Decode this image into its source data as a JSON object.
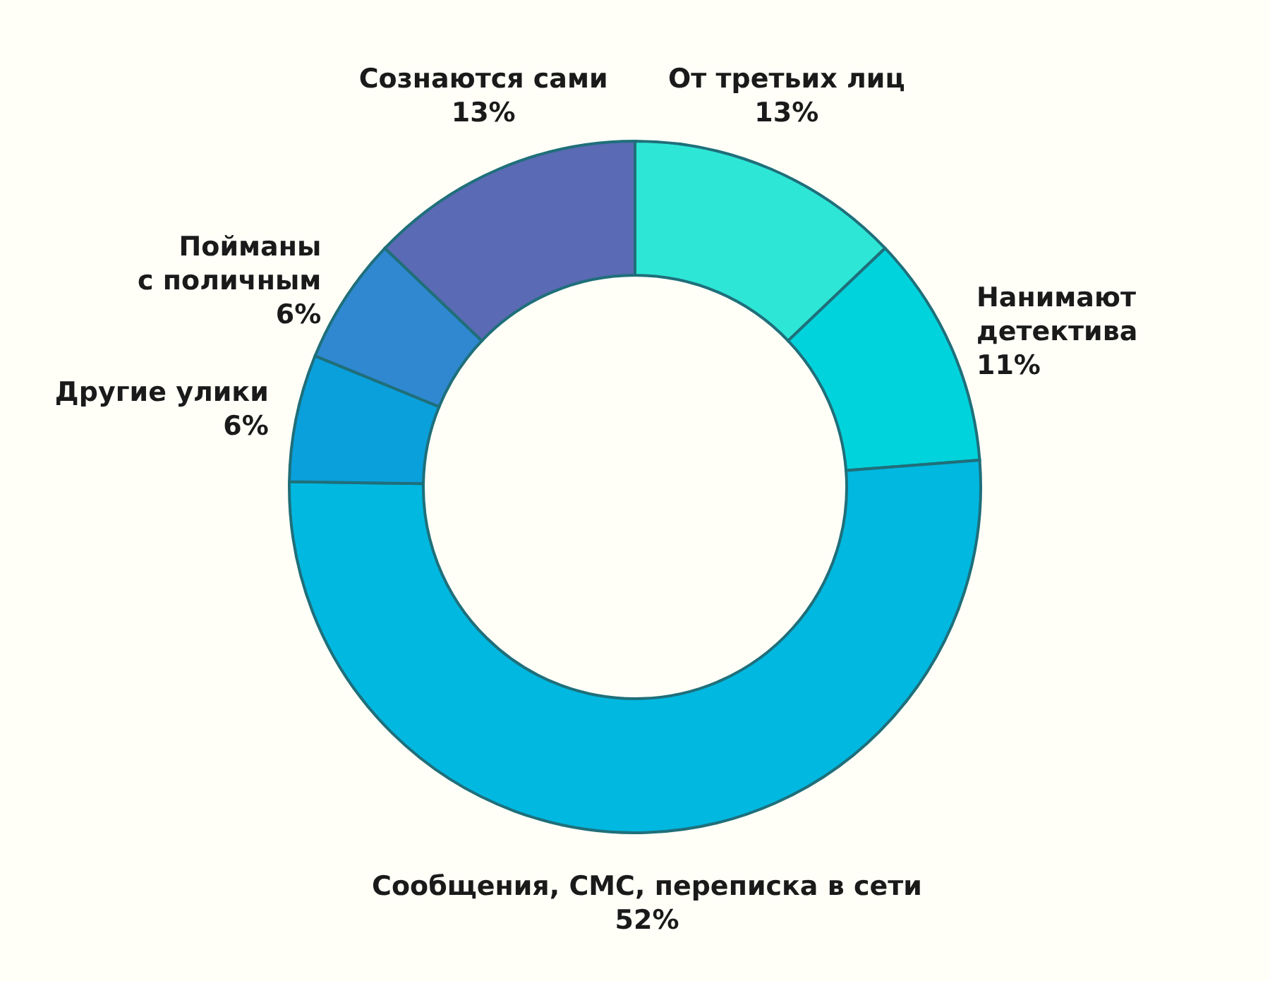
{
  "chart_data": {
    "type": "donut",
    "categories": [
      "От третьих лиц",
      "Нанимают детектива",
      "Сообщения, СМС, переписка в сети",
      "Другие улики",
      "Пойманы с поличным",
      "Сознаются сами"
    ],
    "values": [
      13,
      11,
      52,
      6,
      6,
      13
    ],
    "colors": [
      "#2ee6d6",
      "#00d3dc",
      "#00b8e0",
      "#0aa0dc",
      "#2f88d0",
      "#5a6ab4"
    ],
    "value_labels": [
      "13%",
      "11%",
      "52%",
      "6%",
      "6%",
      "13%"
    ]
  }
}
